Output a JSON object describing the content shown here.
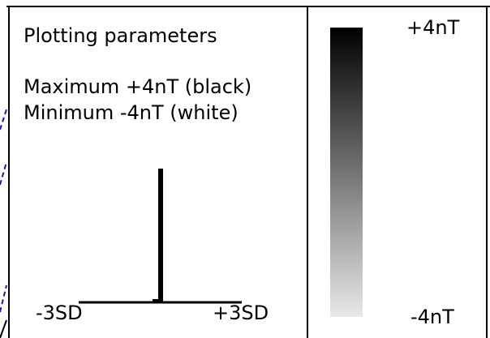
{
  "legend_box": {
    "title": "Plotting parameters",
    "maximum_line": "Maximum +4nT (black)",
    "minimum_line": "Minimum -4nT (white)"
  },
  "histogram": {
    "left_label": "-3SD",
    "right_label": "+3SD"
  },
  "color_scale": {
    "top_label": "+4nT",
    "bottom_label": "-4nT",
    "max_color": "#000000",
    "min_color": "#e8e8e8"
  },
  "colors": {
    "frame": "#000000",
    "dashed_trace": "#1a1aa8"
  }
}
